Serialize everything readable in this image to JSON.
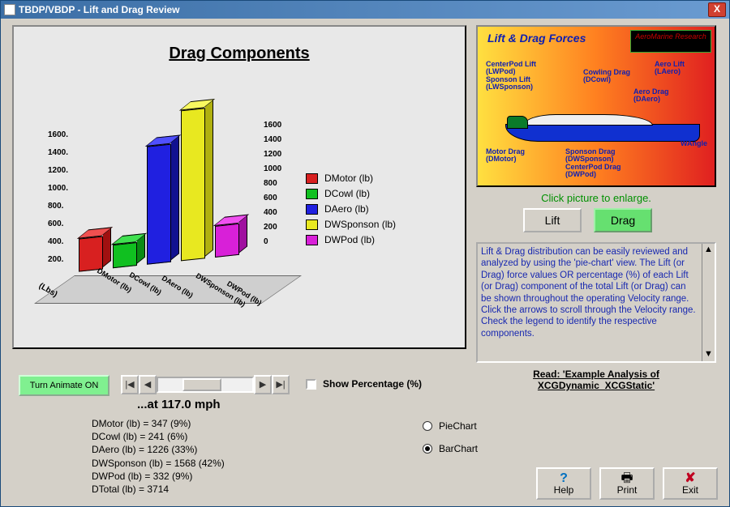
{
  "window": {
    "title": "TBDP/VBDP - Lift and Drag Review",
    "close_label": "X"
  },
  "chart": {
    "type": "bar",
    "title": "Drag Components",
    "categories": [
      "DMotor (lb)",
      "DCowl (lb)",
      "DAero (lb)",
      "DWSponson (lb)",
      "DWPod (lb)"
    ],
    "values": [
      347,
      241,
      1226,
      1568,
      332
    ],
    "bar_colors_front": [
      "#d82020",
      "#10c020",
      "#2020e0",
      "#e8e820",
      "#d820d8"
    ],
    "bar_colors_side": [
      "#a01010",
      "#0a8a14",
      "#101090",
      "#b0b010",
      "#a010a0"
    ],
    "bar_colors_top": [
      "#f05050",
      "#40e050",
      "#5050ff",
      "#f8f860",
      "#f050f0"
    ],
    "y_left_ticks": [
      "200.",
      "400.",
      "600.",
      "800.",
      "1000.",
      "1200.",
      "1400.",
      "1600."
    ],
    "y_right_ticks": [
      "0",
      "200",
      "400",
      "600",
      "800",
      "1000",
      "1200",
      "1400",
      "1600"
    ],
    "y_axis_label": "(Lbs)",
    "ylim": [
      0,
      1600
    ],
    "background_color": "#e8e8e8"
  },
  "legend": {
    "items": [
      {
        "label": "DMotor (lb)",
        "color": "#d82020"
      },
      {
        "label": "DCowl (lb)",
        "color": "#10c020"
      },
      {
        "label": "DAero (lb)",
        "color": "#2020e0"
      },
      {
        "label": "DWSponson (lb)",
        "color": "#e8e820"
      },
      {
        "label": "DWPod (lb)",
        "color": "#d820d8"
      }
    ]
  },
  "diagram": {
    "title": "Lift & Drag Forces",
    "brand": "AeroMarine Research",
    "labels": {
      "centerpod": "CenterPod Lift\n(LWPod)\nSponson Lift\n(LWSponson)",
      "cowling": "Cowling Drag\n(DCowl)",
      "aerolift": "Aero Lift\n(LAero)",
      "aerodrag": "Aero Drag\n(DAero)",
      "motor": "Motor Drag\n(DMotor)",
      "sponson": "Sponson Drag\n(DWSponson)\nCenterPod Drag\n(DWPod)",
      "wangle": "WAngle"
    },
    "click_hint": "Click picture to enlarge."
  },
  "buttons": {
    "lift": "Lift",
    "drag": "Drag",
    "animate": "Turn Animate ON",
    "help": "Help",
    "print": "Print",
    "exit": "Exit"
  },
  "description": {
    "text": "Lift & Drag distribution can be easily reviewed and analyzed by using the 'pie-chart' view.  The Lift (or Drag) force values OR percentage (%) of each Lift (or Drag) component of the total Lift (or Drag) can be shown throughout the operating Velocity range.  Click the arrows to scroll through the Velocity range.  Check the legend to identify the respective components."
  },
  "read_link": "Read: 'Example Analysis of XCGDynamic_XCGStatic'",
  "speed": {
    "label": "...at 117.0 mph"
  },
  "show_pct_label": "Show Percentage (%)",
  "readout": {
    "lines": [
      "DMotor (lb) = 347 (9%)",
      "DCowl (lb) = 241 (6%)",
      "DAero (lb) = 1226 (33%)",
      "DWSponson (lb) = 1568 (42%)",
      "DWPod (lb) = 332 (9%)",
      "DTotal (lb) = 3714"
    ]
  },
  "chart_type": {
    "options": [
      {
        "label": "PieChart",
        "checked": false
      },
      {
        "label": "BarChart",
        "checked": true
      }
    ]
  }
}
